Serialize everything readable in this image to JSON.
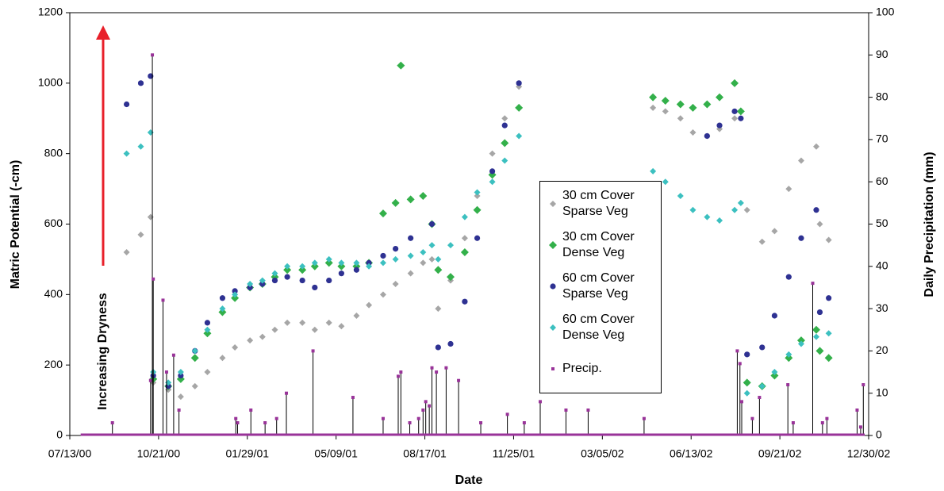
{
  "chart_data": {
    "type": "scatter",
    "x_label": "Date",
    "y_label": "Matric Potential (-cm)",
    "y2_label": "Daily Precipitation (mm)",
    "annotation": "Increasing Dryness",
    "xlim": [
      "2000-07-13",
      "2002-12-30"
    ],
    "xticks": [
      {
        "value": "2000-07-13",
        "label": "07/13/00"
      },
      {
        "value": "2000-10-21",
        "label": "10/21/00"
      },
      {
        "value": "2001-01-29",
        "label": "01/29/01"
      },
      {
        "value": "2001-05-09",
        "label": "05/09/01"
      },
      {
        "value": "2001-08-17",
        "label": "08/17/01"
      },
      {
        "value": "2001-11-25",
        "label": "11/25/01"
      },
      {
        "value": "2002-03-05",
        "label": "03/05/02"
      },
      {
        "value": "2002-06-13",
        "label": "06/13/02"
      },
      {
        "value": "2002-09-21",
        "label": "09/21/02"
      },
      {
        "value": "2002-12-30",
        "label": "12/30/02"
      }
    ],
    "ylim": [
      0,
      1200
    ],
    "yticks": [
      0,
      200,
      400,
      600,
      800,
      1000,
      1200
    ],
    "y2lim": [
      0,
      100
    ],
    "y2ticks": [
      0,
      10,
      20,
      30,
      40,
      50,
      60,
      70,
      80,
      90,
      100
    ],
    "series": [
      {
        "name": "30 cm Cover Sparse Veg",
        "color": "#a6a6a6",
        "marker": "diamond",
        "x": [
          "2000-09-15",
          "2000-10-01",
          "2000-10-12",
          "2000-10-15",
          "2000-11-01",
          "2000-11-15",
          "2000-12-01",
          "2000-12-15",
          "2001-01-01",
          "2001-01-15",
          "2001-02-01",
          "2001-02-15",
          "2001-03-01",
          "2001-03-15",
          "2001-04-01",
          "2001-04-15",
          "2001-05-01",
          "2001-05-15",
          "2001-06-01",
          "2001-06-15",
          "2001-07-01",
          "2001-07-15",
          "2001-08-01",
          "2001-08-15",
          "2001-08-25",
          "2001-09-01",
          "2001-09-15",
          "2001-10-01",
          "2001-10-15",
          "2001-11-01",
          "2001-11-15",
          "2001-12-01",
          "2002-05-01",
          "2002-05-15",
          "2002-06-01",
          "2002-06-15",
          "2002-07-01",
          "2002-07-15",
          "2002-08-01",
          "2002-08-08",
          "2002-08-15",
          "2002-09-01",
          "2002-09-15",
          "2002-10-01",
          "2002-10-15",
          "2002-11-01",
          "2002-11-05",
          "2002-11-15"
        ],
        "values": [
          520,
          570,
          620,
          150,
          130,
          110,
          140,
          180,
          220,
          250,
          270,
          280,
          300,
          320,
          320,
          300,
          320,
          310,
          340,
          370,
          400,
          430,
          460,
          490,
          500,
          360,
          440,
          560,
          680,
          800,
          900,
          990,
          930,
          920,
          900,
          860,
          850,
          870,
          900,
          920,
          640,
          550,
          580,
          700,
          780,
          820,
          600,
          555
        ]
      },
      {
        "name": "30 cm Cover Dense Veg",
        "color": "#33b04a",
        "marker": "diamond-lg",
        "x": [
          "2000-10-15",
          "2000-11-01",
          "2000-11-15",
          "2000-12-01",
          "2000-12-15",
          "2001-01-01",
          "2001-01-15",
          "2001-02-01",
          "2001-02-15",
          "2001-03-01",
          "2001-03-15",
          "2001-04-01",
          "2001-04-15",
          "2001-05-01",
          "2001-05-15",
          "2001-06-01",
          "2001-06-15",
          "2001-07-01",
          "2001-07-15",
          "2001-07-21",
          "2001-08-01",
          "2001-08-15",
          "2001-08-25",
          "2001-09-01",
          "2001-09-15",
          "2001-10-01",
          "2001-10-15",
          "2001-11-01",
          "2001-11-15",
          "2001-12-01",
          "2002-05-01",
          "2002-05-15",
          "2002-06-01",
          "2002-06-15",
          "2002-07-01",
          "2002-07-15",
          "2002-08-01",
          "2002-08-08",
          "2002-08-15",
          "2002-09-01",
          "2002-09-15",
          "2002-10-01",
          "2002-10-15",
          "2002-11-01",
          "2002-11-05",
          "2002-11-15"
        ],
        "values": [
          160,
          140,
          160,
          220,
          290,
          350,
          390,
          420,
          430,
          450,
          470,
          470,
          480,
          490,
          480,
          480,
          490,
          630,
          660,
          1050,
          670,
          680,
          600,
          470,
          450,
          520,
          640,
          740,
          830,
          930,
          960,
          950,
          940,
          930,
          940,
          960,
          1000,
          920,
          150,
          140,
          170,
          220,
          270,
          300,
          240,
          220
        ]
      },
      {
        "name": "60 cm Cover Sparse Veg",
        "color": "#2e3192",
        "marker": "circle",
        "x": [
          "2000-09-15",
          "2000-10-01",
          "2000-10-12",
          "2000-10-15",
          "2000-11-01",
          "2000-11-15",
          "2000-12-01",
          "2000-12-15",
          "2001-01-01",
          "2001-01-15",
          "2001-02-01",
          "2001-02-15",
          "2001-03-01",
          "2001-03-15",
          "2001-04-01",
          "2001-04-15",
          "2001-05-01",
          "2001-05-15",
          "2001-06-01",
          "2001-06-15",
          "2001-07-01",
          "2001-07-15",
          "2001-08-01",
          "2001-08-25",
          "2001-09-01",
          "2001-09-15",
          "2001-10-01",
          "2001-10-15",
          "2001-11-01",
          "2001-11-15",
          "2001-12-01",
          "2002-07-01",
          "2002-07-15",
          "2002-08-01",
          "2002-08-08",
          "2002-08-15",
          "2002-09-01",
          "2002-09-15",
          "2002-10-01",
          "2002-10-15",
          "2002-11-01",
          "2002-11-05",
          "2002-11-15"
        ],
        "values": [
          940,
          1000,
          1020,
          170,
          140,
          170,
          240,
          320,
          390,
          410,
          420,
          430,
          440,
          450,
          440,
          420,
          440,
          460,
          470,
          490,
          510,
          530,
          560,
          600,
          250,
          260,
          380,
          560,
          750,
          880,
          1000,
          850,
          880,
          920,
          900,
          230,
          250,
          340,
          450,
          560,
          640,
          350,
          390
        ]
      },
      {
        "name": "60 cm Cover Dense Veg",
        "color": "#3cc0c0",
        "marker": "diamond",
        "x": [
          "2000-09-15",
          "2000-10-01",
          "2000-10-12",
          "2000-10-15",
          "2000-11-01",
          "2000-11-15",
          "2000-12-01",
          "2000-12-15",
          "2001-01-01",
          "2001-01-15",
          "2001-02-01",
          "2001-02-15",
          "2001-03-01",
          "2001-03-15",
          "2001-04-01",
          "2001-04-15",
          "2001-05-01",
          "2001-05-15",
          "2001-06-01",
          "2001-06-15",
          "2001-07-01",
          "2001-07-15",
          "2001-08-01",
          "2001-08-15",
          "2001-08-25",
          "2001-09-01",
          "2001-09-15",
          "2001-10-01",
          "2001-10-15",
          "2001-11-01",
          "2001-11-15",
          "2001-12-01",
          "2002-05-01",
          "2002-05-15",
          "2002-06-01",
          "2002-06-15",
          "2002-07-01",
          "2002-07-15",
          "2002-08-01",
          "2002-08-08",
          "2002-08-15",
          "2002-09-01",
          "2002-09-15",
          "2002-10-01",
          "2002-10-15",
          "2002-11-01",
          "2002-11-15"
        ],
        "values": [
          800,
          820,
          860,
          180,
          150,
          180,
          240,
          300,
          360,
          400,
          430,
          440,
          460,
          480,
          480,
          490,
          500,
          490,
          490,
          480,
          490,
          500,
          510,
          520,
          540,
          500,
          540,
          620,
          690,
          720,
          780,
          850,
          750,
          720,
          680,
          640,
          620,
          610,
          640,
          660,
          120,
          140,
          180,
          230,
          260,
          280,
          290
        ]
      },
      {
        "name": "Precip.",
        "color": "#993399",
        "marker": "square",
        "axis": "y2",
        "x": [
          "2000-08-30",
          "2000-10-12",
          "2000-10-14",
          "2000-10-15",
          "2000-10-26",
          "2000-10-30",
          "2000-11-07",
          "2000-11-13",
          "2001-01-16",
          "2001-01-18",
          "2001-02-02",
          "2001-02-18",
          "2001-03-03",
          "2001-03-14",
          "2001-04-13",
          "2001-05-28",
          "2001-07-01",
          "2001-07-18",
          "2001-07-21",
          "2001-07-31",
          "2001-08-10",
          "2001-08-15",
          "2001-08-18",
          "2001-08-22",
          "2001-08-25",
          "2001-08-30",
          "2001-09-10",
          "2001-09-24",
          "2001-10-19",
          "2001-11-18",
          "2001-12-07",
          "2001-12-25",
          "2002-01-23",
          "2002-02-17",
          "2002-04-21",
          "2002-08-04",
          "2002-08-07",
          "2002-08-09",
          "2002-08-21",
          "2002-08-29",
          "2002-09-30",
          "2002-10-06",
          "2002-10-28",
          "2002-11-08",
          "2002-11-13",
          "2002-12-17",
          "2002-12-21",
          "2002-12-24"
        ],
        "values": [
          3,
          13,
          90,
          37,
          32,
          15,
          19,
          6,
          4,
          3,
          6,
          3,
          4,
          10,
          20,
          9,
          4,
          14,
          15,
          3,
          4,
          6,
          8,
          7,
          16,
          15,
          16,
          13,
          3,
          5,
          3,
          8,
          6,
          6,
          4,
          20,
          17,
          8,
          4,
          9,
          12,
          3,
          36,
          3,
          4,
          6,
          2,
          12
        ]
      }
    ]
  }
}
